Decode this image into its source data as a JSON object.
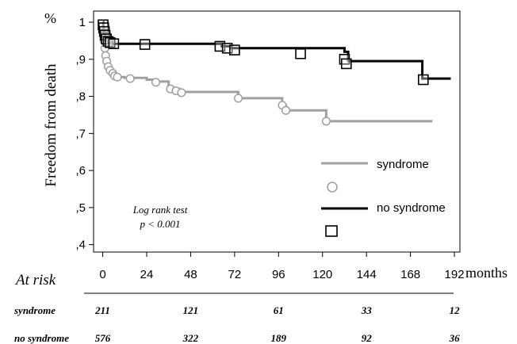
{
  "chart_data": {
    "type": "line",
    "title": "",
    "y_unit_label": "%",
    "ylabel": "Freedom from death",
    "xlabel": "months",
    "xlim": [
      -5,
      195
    ],
    "ylim": [
      0.38,
      1.03
    ],
    "x_ticks": [
      0,
      24,
      48,
      72,
      96,
      120,
      144,
      168,
      192
    ],
    "y_ticks": [
      {
        "value": 0.4,
        "label": ",4"
      },
      {
        "value": 0.5,
        "label": ",5"
      },
      {
        "value": 0.6,
        "label": ",6"
      },
      {
        "value": 0.7,
        "label": ",7"
      },
      {
        "value": 0.8,
        "label": ",8"
      },
      {
        "value": 0.9,
        "label": ",9"
      },
      {
        "value": 1.0,
        "label": "1"
      }
    ],
    "grid": false,
    "legend_position": "bottom-right",
    "series": [
      {
        "name": "syndrome",
        "color": "#a0a0a0",
        "marker": "circle",
        "steps": [
          [
            0,
            1.0
          ],
          [
            0.3,
            0.97
          ],
          [
            0.6,
            0.945
          ],
          [
            0.9,
            0.925
          ],
          [
            1.3,
            0.905
          ],
          [
            1.8,
            0.89
          ],
          [
            2.5,
            0.875
          ],
          [
            3.5,
            0.865
          ],
          [
            5,
            0.858
          ],
          [
            7,
            0.852
          ],
          [
            12,
            0.85
          ],
          [
            24,
            0.845
          ],
          [
            30,
            0.84
          ],
          [
            36,
            0.82
          ],
          [
            42,
            0.812
          ],
          [
            74,
            0.795
          ],
          [
            98,
            0.776
          ],
          [
            100,
            0.762
          ],
          [
            122,
            0.733
          ],
          [
            180,
            0.733
          ]
        ],
        "censored": [
          [
            0.5,
            0.97
          ],
          [
            0.8,
            0.95
          ],
          [
            1.2,
            0.93
          ],
          [
            1.6,
            0.91
          ],
          [
            2.2,
            0.895
          ],
          [
            3,
            0.88
          ],
          [
            4,
            0.87
          ],
          [
            5.5,
            0.862
          ],
          [
            6.5,
            0.855
          ],
          [
            8,
            0.852
          ],
          [
            15,
            0.848
          ],
          [
            29,
            0.838
          ],
          [
            37,
            0.82
          ],
          [
            40,
            0.815
          ],
          [
            43,
            0.81
          ],
          [
            74,
            0.795
          ],
          [
            98,
            0.776
          ],
          [
            100,
            0.762
          ],
          [
            122,
            0.733
          ]
        ]
      },
      {
        "name": "no syndrome",
        "color": "#000000",
        "marker": "square",
        "steps": [
          [
            0,
            1.0
          ],
          [
            0.3,
            0.985
          ],
          [
            0.7,
            0.97
          ],
          [
            1.2,
            0.96
          ],
          [
            2,
            0.95
          ],
          [
            3,
            0.945
          ],
          [
            5,
            0.942
          ],
          [
            65,
            0.935
          ],
          [
            70,
            0.93
          ],
          [
            132,
            0.92
          ],
          [
            134,
            0.895
          ],
          [
            174,
            0.895
          ],
          [
            174.5,
            0.848
          ],
          [
            190,
            0.848
          ]
        ],
        "censored": [
          [
            0.2,
            0.993
          ],
          [
            0.5,
            0.985
          ],
          [
            0.9,
            0.975
          ],
          [
            1.3,
            0.965
          ],
          [
            2,
            0.955
          ],
          [
            3,
            0.948
          ],
          [
            4,
            0.945
          ],
          [
            6,
            0.942
          ],
          [
            23,
            0.94
          ],
          [
            64,
            0.935
          ],
          [
            68,
            0.93
          ],
          [
            72,
            0.925
          ],
          [
            108,
            0.915
          ],
          [
            132,
            0.9
          ],
          [
            133,
            0.888
          ],
          [
            175,
            0.845
          ]
        ]
      }
    ],
    "annotation": {
      "line1": "Log rank test",
      "line2": "p  < 0.001"
    },
    "at_risk": {
      "title": "At risk",
      "columns": [
        0,
        48,
        96,
        144,
        192
      ],
      "rows": [
        {
          "label": "syndrome",
          "values": [
            "211",
            "121",
            "61",
            "33",
            "12"
          ]
        },
        {
          "label": "no syndrome",
          "values": [
            "576",
            "322",
            "189",
            "92",
            "36"
          ]
        }
      ]
    }
  }
}
